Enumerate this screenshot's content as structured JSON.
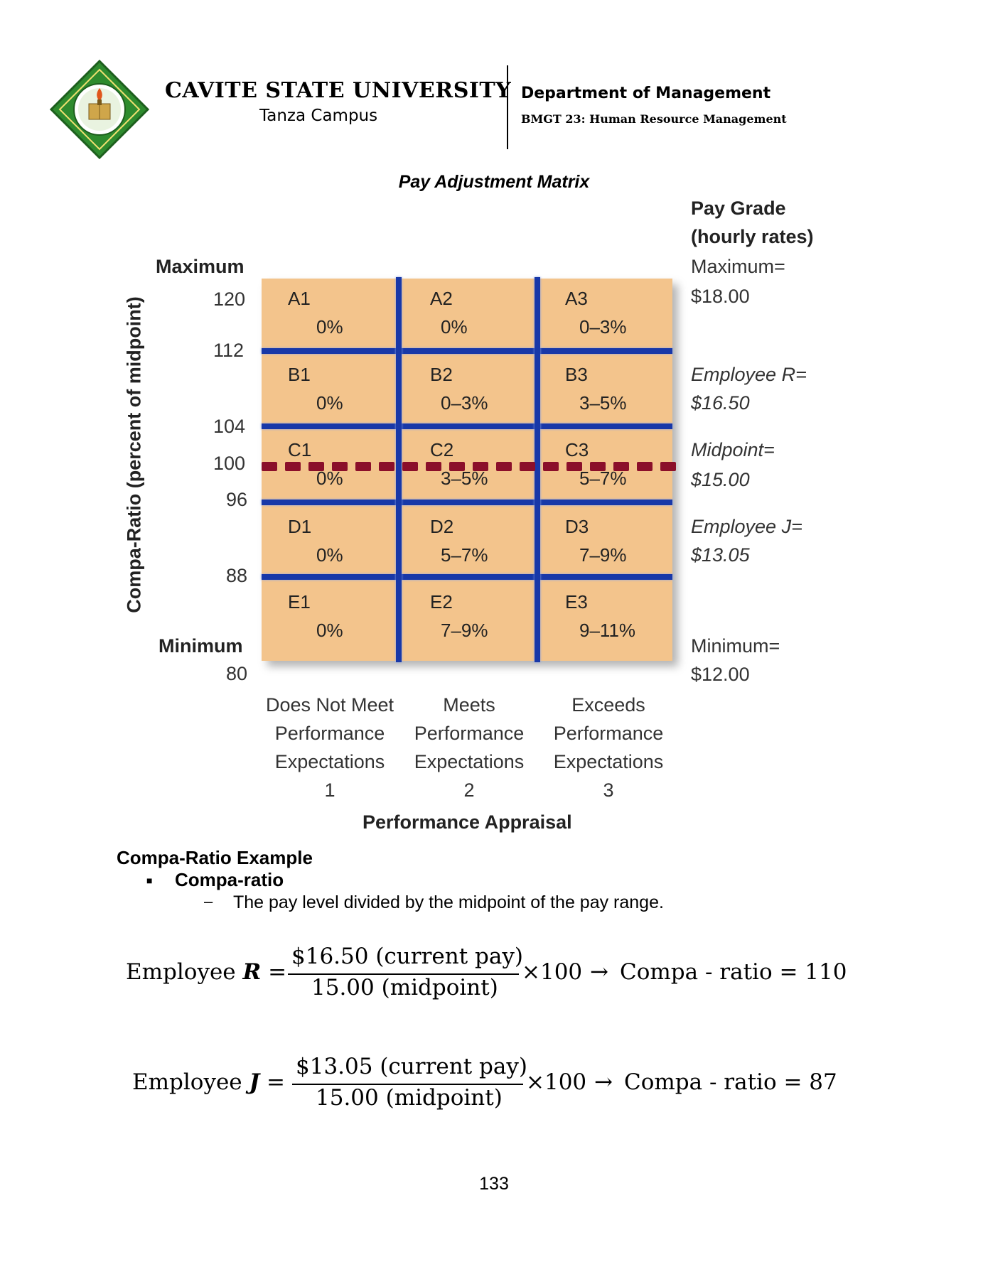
{
  "header": {
    "university": "CAVITE STATE UNIVERSITY",
    "campus": "Tanza Campus",
    "department": "Department of Management",
    "course": "BMGT 23: Human Resource Management",
    "logo_icon": "university-seal"
  },
  "doc_title": "Pay Adjustment Matrix",
  "matrix": {
    "y_axis_title": "Compa-Ratio (percent of midpoint)",
    "y_top_label": "Maximum",
    "y_bottom_label": "Minimum",
    "y_ticks": [
      "120",
      "112",
      "104",
      "100",
      "96",
      "88",
      "80"
    ],
    "right_title_1": "Pay Grade",
    "right_title_2": "(hourly rates)",
    "right_labels": [
      {
        "line1": "Maximum=",
        "line2": "$18.00"
      },
      {
        "line1": "Employee R=",
        "line2": "$16.50"
      },
      {
        "line1": "Midpoint=",
        "line2": "$15.00"
      },
      {
        "line1": "Employee J=",
        "line2": "$13.05"
      },
      {
        "line1": "Minimum=",
        "line2": "$12.00"
      }
    ],
    "cells": [
      [
        {
          "id": "A1",
          "pct": "0%"
        },
        {
          "id": "A2",
          "pct": "0%"
        },
        {
          "id": "A3",
          "pct": "0–3%"
        }
      ],
      [
        {
          "id": "B1",
          "pct": "0%"
        },
        {
          "id": "B2",
          "pct": "0–3%"
        },
        {
          "id": "B3",
          "pct": "3–5%"
        }
      ],
      [
        {
          "id": "C1",
          "pct": "0%"
        },
        {
          "id": "C2",
          "pct": "3–5%"
        },
        {
          "id": "C3",
          "pct": "5–7%"
        }
      ],
      [
        {
          "id": "D1",
          "pct": "0%"
        },
        {
          "id": "D2",
          "pct": "5–7%"
        },
        {
          "id": "D3",
          "pct": "7–9%"
        }
      ],
      [
        {
          "id": "E1",
          "pct": "0%"
        },
        {
          "id": "E2",
          "pct": "7–9%"
        },
        {
          "id": "E3",
          "pct": "9–11%"
        }
      ]
    ],
    "columns": [
      {
        "l1": "Does Not Meet",
        "l2": "Performance",
        "l3": "Expectations",
        "num": "1"
      },
      {
        "l1": "Meets",
        "l2": "Performance",
        "l3": "Expectations",
        "num": "2"
      },
      {
        "l1": "Exceeds",
        "l2": "Performance",
        "l3": "Expectations",
        "num": "3"
      }
    ],
    "x_axis_title": "Performance Appraisal",
    "colors": {
      "cell_fill": "#f3c48c",
      "grid_line": "#1838a8",
      "midpoint_dash": "#8b0f2a"
    }
  },
  "section": {
    "title": "Compa-Ratio Example",
    "bullet": "Compa-ratio",
    "definition": "The pay level divided by the midpoint of the pay range."
  },
  "formulas": [
    {
      "lhs": "Employee",
      "var": "R",
      "num": "$16.50 (current pay)",
      "den": "15.00 (midpoint)",
      "mult": "×100",
      "arrow": "→",
      "rhs": "Compa - ratio = 110"
    },
    {
      "lhs": "Employee",
      "var": "J",
      "num": "$13.05 (current pay)",
      "den": "15.00 (midpoint)",
      "mult": "×100",
      "arrow": "→",
      "rhs": "Compa - ratio = 87"
    }
  ],
  "page_number": "133"
}
